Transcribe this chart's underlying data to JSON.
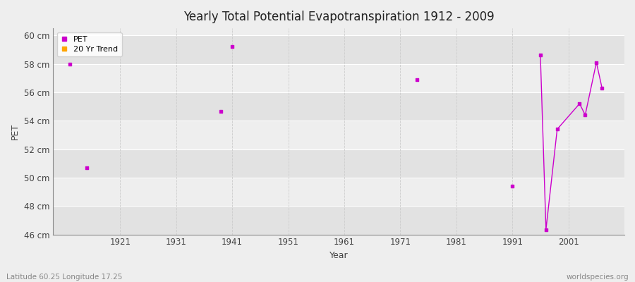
{
  "title": "Yearly Total Potential Evapotranspiration 1912 - 2009",
  "xlabel": "Year",
  "ylabel": "PET",
  "bottom_left": "Latitude 60.25 Longitude 17.25",
  "bottom_right": "worldspecies.org",
  "ylim": [
    46,
    60.5
  ],
  "xlim": [
    1909,
    2011
  ],
  "yticks": [
    46,
    48,
    50,
    52,
    54,
    56,
    58,
    60
  ],
  "ytick_labels": [
    "46 cm",
    "48 cm",
    "50 cm",
    "52 cm",
    "54 cm",
    "56 cm",
    "58 cm",
    "60 cm"
  ],
  "xticks": [
    1921,
    1931,
    1941,
    1951,
    1961,
    1971,
    1981,
    1991,
    2001
  ],
  "bg_light": "#eeeeee",
  "bg_dark": "#e2e2e2",
  "grid_h_color": "#ffffff",
  "grid_v_color": "#cccccc",
  "pet_color": "#cc00cc",
  "trend_color": "#cc00cc",
  "pet_data": [
    [
      1912,
      58.0
    ],
    [
      1915,
      50.7
    ],
    [
      1941,
      59.2
    ],
    [
      1939,
      54.65
    ],
    [
      1974,
      56.9
    ],
    [
      1991,
      49.4
    ],
    [
      1996,
      58.6
    ],
    [
      1997,
      46.35
    ],
    [
      1999,
      53.4
    ],
    [
      2003,
      55.2
    ],
    [
      2004,
      54.4
    ],
    [
      2006,
      58.1
    ],
    [
      2007,
      56.3
    ]
  ],
  "trend_data": [
    [
      1996,
      58.6
    ],
    [
      1997,
      46.35
    ],
    [
      1999,
      53.4
    ],
    [
      2003,
      55.2
    ],
    [
      2004,
      54.4
    ],
    [
      2006,
      58.1
    ],
    [
      2007,
      56.3
    ]
  ],
  "figsize": [
    9.0,
    4.0
  ],
  "dpi": 100
}
